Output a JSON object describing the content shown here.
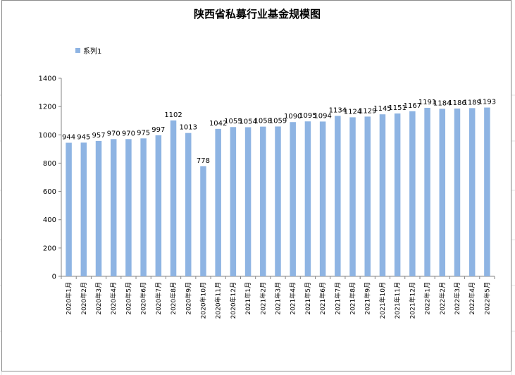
{
  "chart_data": {
    "type": "bar",
    "title": "陕西省私募行业基金规模图",
    "legend": {
      "position": "top-left",
      "series_name": "系列1"
    },
    "categories": [
      "2020年1月",
      "2020年2月",
      "2020年3月",
      "2020年4月",
      "2020年5月",
      "2020年6月",
      "2020年7月",
      "2020年8月",
      "2020年9月",
      "2020年10月",
      "2020年11月",
      "2020年12月",
      "2021年1月",
      "2021年2月",
      "2021年3月",
      "2021年4月",
      "2021年5月",
      "2021年6月",
      "2021年7月",
      "2021年8月",
      "2021年9月",
      "2021年10月",
      "2021年11月",
      "2021年12月",
      "2022年1月",
      "2022年2月",
      "2022年3月",
      "2022年4月",
      "2022年5月"
    ],
    "series": [
      {
        "name": "系列1",
        "color": "#8eb4e3",
        "values": [
          944,
          945,
          957,
          970,
          970,
          975,
          997,
          1102,
          1013,
          778,
          1042,
          1055,
          1054,
          1058,
          1059,
          1090,
          1095,
          1094,
          1134,
          1124,
          1129,
          1145,
          1151,
          1167,
          1191,
          1184,
          1186,
          1189,
          1193
        ]
      }
    ],
    "ylim": [
      0,
      1400
    ],
    "yticks": [
      0,
      200,
      400,
      600,
      800,
      1000,
      1200,
      1400
    ],
    "grid": false,
    "xlabel": "",
    "ylabel": ""
  }
}
